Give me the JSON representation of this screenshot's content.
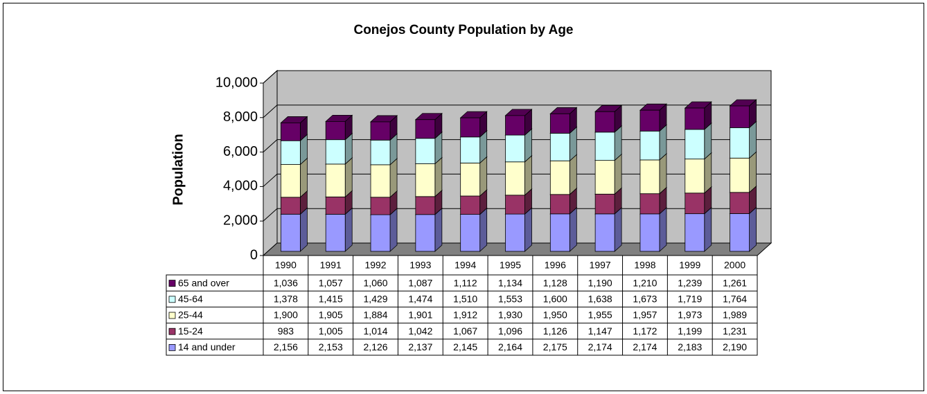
{
  "chart_data": {
    "type": "bar3d_stacked",
    "title": "Conejos County Population by Age",
    "y_label": "Population",
    "categories": [
      "1990",
      "1991",
      "1992",
      "1993",
      "1994",
      "1995",
      "1996",
      "1997",
      "1998",
      "1999",
      "2000"
    ],
    "series": [
      {
        "name": "65 and over",
        "color": "#660066",
        "values": [
          1036,
          1057,
          1060,
          1087,
          1112,
          1134,
          1128,
          1190,
          1210,
          1239,
          1261
        ],
        "value_labels": [
          "1,036",
          "1,057",
          "1,060",
          "1,087",
          "1,112",
          "1,134",
          "1,128",
          "1,190",
          "1,210",
          "1,239",
          "1,261"
        ]
      },
      {
        "name": "45-64",
        "color": "#ccffff",
        "values": [
          1378,
          1415,
          1429,
          1474,
          1510,
          1553,
          1600,
          1638,
          1673,
          1719,
          1764
        ],
        "value_labels": [
          "1,378",
          "1,415",
          "1,429",
          "1,474",
          "1,510",
          "1,553",
          "1,600",
          "1,638",
          "1,673",
          "1,719",
          "1,764"
        ]
      },
      {
        "name": "25-44",
        "color": "#ffffcc",
        "values": [
          1900,
          1905,
          1884,
          1901,
          1912,
          1930,
          1950,
          1955,
          1957,
          1973,
          1989
        ],
        "value_labels": [
          "1,900",
          "1,905",
          "1,884",
          "1,901",
          "1,912",
          "1,930",
          "1,950",
          "1,955",
          "1,957",
          "1,973",
          "1,989"
        ]
      },
      {
        "name": "15-24",
        "color": "#993366",
        "values": [
          983,
          1005,
          1014,
          1042,
          1067,
          1096,
          1126,
          1147,
          1172,
          1199,
          1231
        ],
        "value_labels": [
          "983",
          "1,005",
          "1,014",
          "1,042",
          "1,067",
          "1,096",
          "1,126",
          "1,147",
          "1,172",
          "1,199",
          "1,231"
        ]
      },
      {
        "name": "14 and under",
        "color": "#9999ff",
        "values": [
          2156,
          2153,
          2126,
          2137,
          2145,
          2164,
          2175,
          2174,
          2174,
          2183,
          2190
        ],
        "value_labels": [
          "2,156",
          "2,153",
          "2,126",
          "2,137",
          "2,145",
          "2,164",
          "2,175",
          "2,174",
          "2,174",
          "2,183",
          "2,190"
        ]
      }
    ],
    "ylim": [
      0,
      10000
    ],
    "yticks": [
      0,
      {
        "value": 2000,
        "label": "2,000"
      },
      {
        "value": 4000,
        "label": "4,000"
      },
      {
        "value": 6000,
        "label": "6,000"
      },
      {
        "value": 8000,
        "label": "8,000"
      },
      {
        "value": 10000,
        "label": "10,000"
      }
    ],
    "grid": true,
    "wall_color": "#c0c0c0",
    "floor_color": "#808080"
  }
}
